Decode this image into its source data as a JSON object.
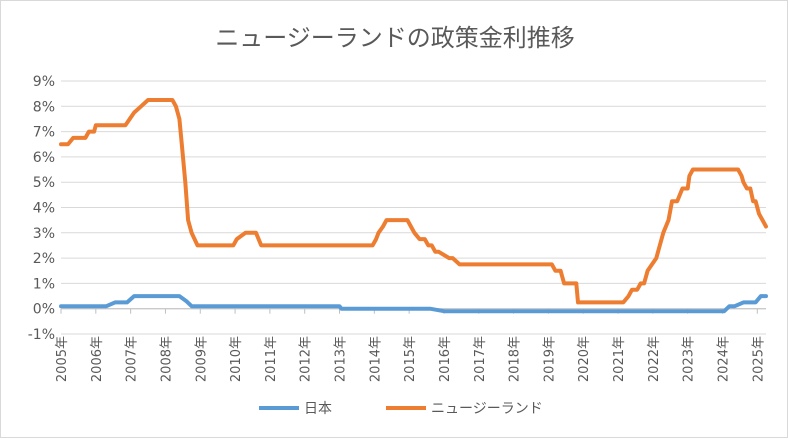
{
  "chart_data": {
    "type": "line",
    "title": "ニュージーランドの政策金利推移",
    "xlabel": "",
    "ylabel": "",
    "xlim": [
      2005.0,
      2025.25
    ],
    "ylim": [
      -1,
      9
    ],
    "y_ticks": [
      "-1%",
      "0%",
      "1%",
      "2%",
      "3%",
      "4%",
      "5%",
      "6%",
      "7%",
      "8%",
      "9%"
    ],
    "x_ticks": [
      "2005年",
      "2006年",
      "2007年",
      "2008年",
      "2009年",
      "2010年",
      "2011年",
      "2012年",
      "2013年",
      "2014年",
      "2015年",
      "2016年",
      "2017年",
      "2018年",
      "2019年",
      "2020年",
      "2021年",
      "2022年",
      "2023年",
      "2024年",
      "2025年"
    ],
    "grid": true,
    "legend_position": "bottom",
    "series": [
      {
        "name": "日本",
        "color": "#5b9bd5",
        "x": [
          2005.0,
          2006.3,
          2006.55,
          2006.9,
          2007.1,
          2008.2,
          2008.4,
          2008.6,
          2008.75,
          2013.0,
          2013.05,
          2015.6,
          2016.0,
          2016.1,
          2024.05,
          2024.2,
          2024.35,
          2024.6,
          2024.95,
          2025.1,
          2025.25
        ],
        "values": [
          0.1,
          0.1,
          0.25,
          0.25,
          0.5,
          0.5,
          0.5,
          0.3,
          0.1,
          0.1,
          0.0,
          0.0,
          -0.1,
          -0.1,
          -0.1,
          0.1,
          0.1,
          0.25,
          0.25,
          0.5,
          0.5
        ]
      },
      {
        "name": "ニュージーランド",
        "color": "#ed7d31",
        "x": [
          2005.0,
          2005.2,
          2005.35,
          2005.7,
          2005.8,
          2005.95,
          2006.0,
          2006.6,
          2006.7,
          2006.85,
          2007.1,
          2007.3,
          2007.5,
          2007.9,
          2008.1,
          2008.2,
          2008.3,
          2008.4,
          2008.47,
          2008.57,
          2008.65,
          2008.75,
          2008.92,
          2008.97,
          2009.95,
          2010.05,
          2010.3,
          2010.6,
          2010.75,
          2013.85,
          2013.95,
          2014.05,
          2014.12,
          2014.25,
          2014.35,
          2014.6,
          2014.95,
          2015.05,
          2015.15,
          2015.3,
          2015.45,
          2015.55,
          2015.65,
          2015.75,
          2015.85,
          2016.15,
          2016.25,
          2016.45,
          2016.55,
          2016.65,
          2019.0,
          2019.1,
          2019.2,
          2019.35,
          2019.45,
          2019.8,
          2019.85,
          2021.05,
          2021.15,
          2021.3,
          2021.4,
          2021.55,
          2021.65,
          2021.75,
          2021.85,
          2022.1,
          2022.2,
          2022.3,
          2022.45,
          2022.55,
          2022.7,
          2022.85,
          2023.0,
          2023.05,
          2023.15,
          2023.3,
          2024.3,
          2024.45,
          2024.55,
          2024.6,
          2024.7,
          2024.8,
          2024.88,
          2024.95,
          2025.05,
          2025.15,
          2025.25
        ],
        "values": [
          6.5,
          6.5,
          6.75,
          6.75,
          7.0,
          7.0,
          7.25,
          7.25,
          7.25,
          7.25,
          7.75,
          8.0,
          8.25,
          8.25,
          8.25,
          8.25,
          8.0,
          7.5,
          6.5,
          5.0,
          3.5,
          3.0,
          2.5,
          2.5,
          2.5,
          2.75,
          3.0,
          3.0,
          2.5,
          2.5,
          2.5,
          2.75,
          3.0,
          3.25,
          3.5,
          3.5,
          3.5,
          3.25,
          3.0,
          2.75,
          2.75,
          2.5,
          2.5,
          2.25,
          2.25,
          2.0,
          2.0,
          1.75,
          1.75,
          1.75,
          1.75,
          1.75,
          1.5,
          1.5,
          1.0,
          1.0,
          0.25,
          0.25,
          0.25,
          0.5,
          0.75,
          0.75,
          1.0,
          1.0,
          1.5,
          2.0,
          2.5,
          3.0,
          3.5,
          4.25,
          4.25,
          4.75,
          4.75,
          5.25,
          5.5,
          5.5,
          5.5,
          5.5,
          5.25,
          5.0,
          4.75,
          4.75,
          4.25,
          4.25,
          3.75,
          3.5,
          3.25
        ]
      }
    ]
  }
}
